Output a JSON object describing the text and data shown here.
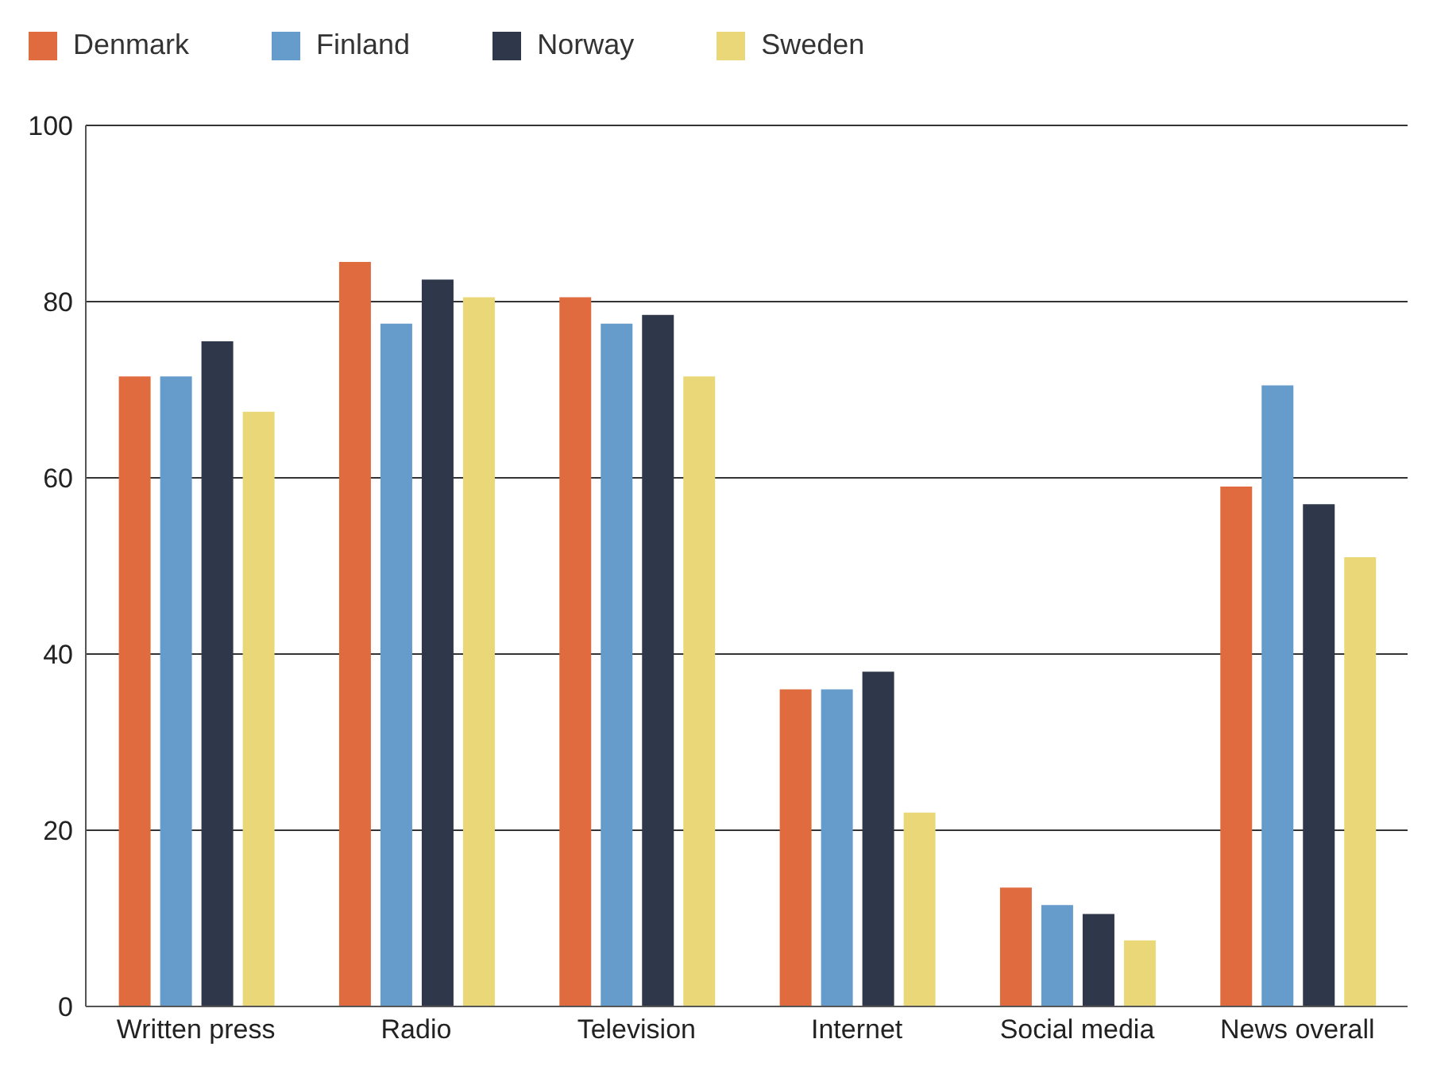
{
  "chart_data": {
    "type": "bar",
    "categories": [
      "Written press",
      "Radio",
      "Television",
      "Internet",
      "Social media",
      "News overall"
    ],
    "series": [
      {
        "name": "Denmark",
        "color": "#e06b3f",
        "values": [
          71.5,
          84.5,
          80.5,
          36,
          13.5,
          59
        ]
      },
      {
        "name": "Finland",
        "color": "#669ccb",
        "values": [
          71.5,
          77.5,
          77.5,
          36,
          11.5,
          70.5
        ]
      },
      {
        "name": "Norway",
        "color": "#2f374a",
        "values": [
          75.5,
          82.5,
          78.5,
          38,
          10.5,
          57
        ]
      },
      {
        "name": "Sweden",
        "color": "#ead777",
        "values": [
          67.5,
          80.5,
          71.5,
          22,
          7.5,
          51
        ]
      }
    ],
    "ylim": [
      0,
      100
    ],
    "yticks": [
      0,
      20,
      40,
      60,
      80,
      100
    ],
    "grid": "y",
    "legend": "top left"
  }
}
